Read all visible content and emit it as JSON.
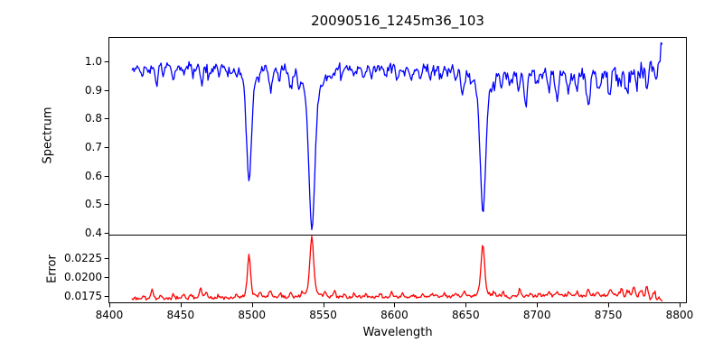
{
  "figure": {
    "background": "#ffffff",
    "spine_color": "#000000"
  },
  "chart_data": [
    {
      "type": "line",
      "subplot": "spectrum",
      "title": "20090516_1245m36_103",
      "xlabel": "Wavelength",
      "ylabel": "Spectrum",
      "line_color": "#0000ff",
      "line_width": 1.3,
      "grid": false,
      "legend": null,
      "xlim": [
        8399.4,
        8805.1
      ],
      "ylim": [
        0.394,
        1.085
      ],
      "xticks": [
        8400,
        8450,
        8500,
        8550,
        8600,
        8650,
        8700,
        8750,
        8800
      ],
      "xticklabels": [
        "8400",
        "8450",
        "8500",
        "8550",
        "8600",
        "8650",
        "8700",
        "8750",
        "8800"
      ],
      "yticks": [
        1.0,
        0.9,
        0.8,
        0.7,
        0.6,
        0.5,
        0.4
      ],
      "yticklabels": [
        "1.0",
        "0.9",
        "0.8",
        "0.7",
        "0.6",
        "0.5",
        "0.4"
      ],
      "x_start": 8416,
      "x_end": 8788,
      "x_step": 0.7,
      "continuum_points": [
        [
          8416,
          0.972
        ],
        [
          8425,
          0.978
        ],
        [
          8440,
          0.982
        ],
        [
          8460,
          0.984
        ],
        [
          8480,
          0.985
        ],
        [
          8500,
          0.982
        ],
        [
          8520,
          0.98
        ],
        [
          8540,
          0.982
        ],
        [
          8560,
          0.982
        ],
        [
          8585,
          0.983
        ],
        [
          8610,
          0.982
        ],
        [
          8640,
          0.978
        ],
        [
          8665,
          0.972
        ],
        [
          8690,
          0.962
        ],
        [
          8715,
          0.958
        ],
        [
          8740,
          0.958
        ],
        [
          8760,
          0.962
        ],
        [
          8772,
          0.968
        ],
        [
          8780,
          0.988
        ],
        [
          8785,
          1.01
        ],
        [
          8788,
          1.042
        ]
      ],
      "major_absorption_lines": [
        {
          "center": 8498.0,
          "depth": 0.4,
          "min_flux": 0.583,
          "core_sigma": 1.6,
          "wing_gamma": 2.8,
          "wing_mix": 0.4
        },
        {
          "center": 8542.1,
          "depth": 0.565,
          "min_flux": 0.419,
          "core_sigma": 2.0,
          "wing_gamma": 3.6,
          "wing_mix": 0.42
        },
        {
          "center": 8662.1,
          "depth": 0.5,
          "min_flux": 0.482,
          "core_sigma": 1.8,
          "wing_gamma": 3.2,
          "wing_mix": 0.4
        }
      ],
      "minor_absorption_lines": [
        [
          8423,
          0.03,
          0.8
        ],
        [
          8427,
          0.025,
          0.7
        ],
        [
          8433,
          0.055,
          1.0
        ],
        [
          8438,
          0.035,
          0.8
        ],
        [
          8445,
          0.05,
          1.0
        ],
        [
          8452,
          0.03,
          0.8
        ],
        [
          8459,
          0.025,
          0.7
        ],
        [
          8465,
          0.06,
          1.0
        ],
        [
          8470,
          0.04,
          0.8
        ],
        [
          8477,
          0.03,
          0.8
        ],
        [
          8483,
          0.03,
          0.7
        ],
        [
          8489,
          0.035,
          0.8
        ],
        [
          8505,
          0.03,
          0.7
        ],
        [
          8513,
          0.07,
          1.1
        ],
        [
          8519,
          0.04,
          0.8
        ],
        [
          8527,
          0.055,
          1.0
        ],
        [
          8533,
          0.04,
          0.8
        ],
        [
          8550,
          0.03,
          0.7
        ],
        [
          8556,
          0.035,
          0.8
        ],
        [
          8563,
          0.03,
          0.7
        ],
        [
          8572,
          0.03,
          0.7
        ],
        [
          8578,
          0.03,
          0.7
        ],
        [
          8584,
          0.045,
          0.9
        ],
        [
          8594,
          0.04,
          0.8
        ],
        [
          8602,
          0.05,
          0.9
        ],
        [
          8607,
          0.035,
          0.7
        ],
        [
          8612,
          0.045,
          0.8
        ],
        [
          8618,
          0.04,
          0.8
        ],
        [
          8625,
          0.045,
          0.9
        ],
        [
          8632,
          0.035,
          0.8
        ],
        [
          8637,
          0.03,
          0.7
        ],
        [
          8643,
          0.045,
          0.9
        ],
        [
          8648,
          0.08,
          1.1
        ],
        [
          8654,
          0.03,
          0.7
        ],
        [
          8670,
          0.04,
          0.8
        ],
        [
          8675,
          0.05,
          0.9
        ],
        [
          8681,
          0.05,
          0.8
        ],
        [
          8687,
          0.06,
          0.9
        ],
        [
          8692,
          0.11,
          1.2
        ],
        [
          8700,
          0.05,
          0.8
        ],
        [
          8708,
          0.05,
          0.8
        ],
        [
          8714,
          0.095,
          1.1
        ],
        [
          8722,
          0.06,
          0.9
        ],
        [
          8728,
          0.06,
          0.8
        ],
        [
          8736,
          0.105,
          1.2
        ],
        [
          8743,
          0.06,
          0.9
        ],
        [
          8751,
          0.075,
          1.0
        ],
        [
          8757,
          0.05,
          0.8
        ],
        [
          8763,
          0.09,
          1.0
        ],
        [
          8770,
          0.07,
          0.9
        ],
        [
          8777,
          0.085,
          1.0
        ],
        [
          8783,
          0.05,
          0.8
        ]
      ],
      "noise_sigma": 0.011,
      "noise_right_rise_start": 8690,
      "noise_seed": 12345
    },
    {
      "type": "line",
      "subplot": "error",
      "xlabel": "Wavelength",
      "ylabel": "Error",
      "line_color": "#ff0000",
      "line_width": 1.3,
      "grid": false,
      "legend": null,
      "xlim": [
        8399.4,
        8805.1
      ],
      "ylim": [
        0.0166,
        0.0255
      ],
      "yticks": [
        0.0225,
        0.02,
        0.0175
      ],
      "yticklabels": [
        "0.0225",
        "0.0200",
        "0.0175"
      ],
      "x_start": 8416,
      "x_end": 8788,
      "x_step": 0.7,
      "baseline_points": [
        [
          8416,
          0.0171
        ],
        [
          8425,
          0.01715
        ],
        [
          8450,
          0.0172
        ],
        [
          8480,
          0.01725
        ],
        [
          8510,
          0.01725
        ],
        [
          8540,
          0.0173
        ],
        [
          8570,
          0.01735
        ],
        [
          8600,
          0.01735
        ],
        [
          8630,
          0.0174
        ],
        [
          8660,
          0.0174
        ],
        [
          8690,
          0.01745
        ],
        [
          8715,
          0.0175
        ],
        [
          8738,
          0.01755
        ],
        [
          8752,
          0.0176
        ],
        [
          8762,
          0.01755
        ],
        [
          8770,
          0.0175
        ],
        [
          8778,
          0.0173
        ],
        [
          8784,
          0.0171
        ],
        [
          8788,
          0.01695
        ]
      ],
      "peaks": [
        [
          8424,
          0.0004,
          0.7
        ],
        [
          8430,
          0.0013,
          0.8
        ],
        [
          8436,
          0.0005,
          0.7
        ],
        [
          8445,
          0.0005,
          0.7
        ],
        [
          8452,
          0.0004,
          0.7
        ],
        [
          8457,
          0.0006,
          0.7
        ],
        [
          8464,
          0.0013,
          0.8
        ],
        [
          8468,
          0.0008,
          0.7
        ],
        [
          8477,
          0.0004,
          0.7
        ],
        [
          8489,
          0.0005,
          0.7
        ],
        [
          8498,
          0.0056,
          1.2
        ],
        [
          8506,
          0.0007,
          0.8
        ],
        [
          8513,
          0.001,
          0.9
        ],
        [
          8520,
          0.0005,
          0.7
        ],
        [
          8527,
          0.0007,
          0.8
        ],
        [
          8535,
          0.0005,
          0.7
        ],
        [
          8542,
          0.008,
          1.4
        ],
        [
          8551,
          0.0006,
          0.8
        ],
        [
          8558,
          0.0008,
          0.8
        ],
        [
          8565,
          0.0004,
          0.7
        ],
        [
          8572,
          0.0004,
          0.7
        ],
        [
          8580,
          0.0005,
          0.7
        ],
        [
          8590,
          0.0004,
          0.7
        ],
        [
          8598,
          0.0007,
          0.8
        ],
        [
          8606,
          0.0005,
          0.7
        ],
        [
          8613,
          0.0005,
          0.7
        ],
        [
          8620,
          0.0004,
          0.7
        ],
        [
          8627,
          0.0004,
          0.7
        ],
        [
          8635,
          0.0004,
          0.7
        ],
        [
          8643,
          0.0006,
          0.8
        ],
        [
          8649,
          0.0008,
          0.8
        ],
        [
          8662,
          0.0068,
          1.3
        ],
        [
          8670,
          0.0005,
          0.7
        ],
        [
          8676,
          0.0005,
          0.7
        ],
        [
          8688,
          0.001,
          0.9
        ],
        [
          8695,
          0.0005,
          0.7
        ],
        [
          8702,
          0.0005,
          0.7
        ],
        [
          8708,
          0.0005,
          0.7
        ],
        [
          8714,
          0.0008,
          0.8
        ],
        [
          8722,
          0.0005,
          0.7
        ],
        [
          8728,
          0.0006,
          0.7
        ],
        [
          8736,
          0.0008,
          0.8
        ],
        [
          8743,
          0.0006,
          0.7
        ],
        [
          8751,
          0.0008,
          0.8
        ],
        [
          8759,
          0.001,
          0.8
        ],
        [
          8764,
          0.0007,
          0.7
        ],
        [
          8768,
          0.0013,
          0.8
        ],
        [
          8773,
          0.0008,
          0.7
        ],
        [
          8777,
          0.0015,
          0.9
        ],
        [
          8782,
          0.0007,
          0.7
        ]
      ],
      "noise_sigma": 0.00012,
      "noise_right_rise_start": 8690,
      "noise_seed": 99
    }
  ]
}
